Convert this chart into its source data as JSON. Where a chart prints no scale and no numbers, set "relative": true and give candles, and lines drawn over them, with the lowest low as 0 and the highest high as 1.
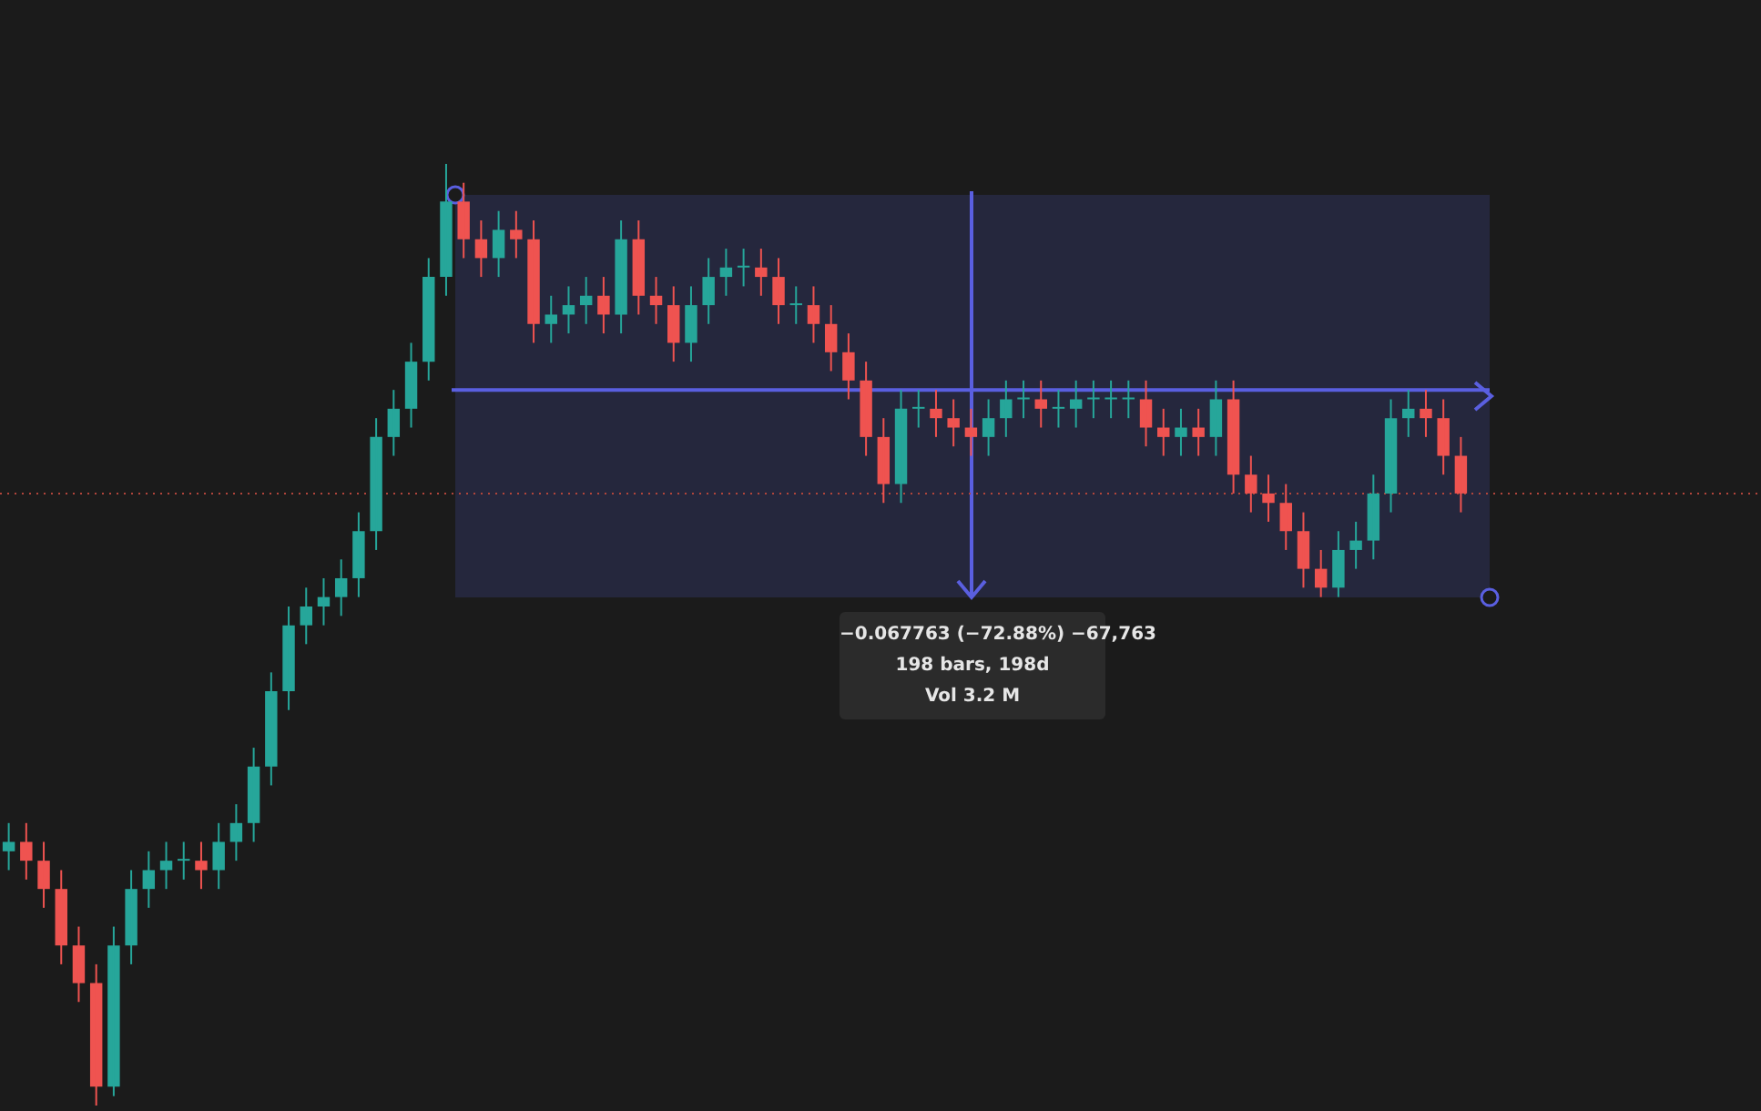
{
  "chart_data": {
    "type": "candlestick",
    "relative": true,
    "categories": [
      null,
      null,
      null,
      null,
      null,
      null,
      null,
      null,
      null,
      null,
      null,
      null,
      null,
      null,
      null,
      null,
      null,
      null,
      null,
      null,
      null,
      null,
      null,
      null,
      null,
      null,
      null,
      null,
      null,
      null,
      null,
      null,
      null,
      null,
      null,
      null,
      null,
      null,
      null,
      null,
      null,
      null,
      null,
      null,
      null,
      null,
      null,
      null,
      null,
      null,
      null,
      null,
      null,
      null,
      null,
      null,
      null,
      null,
      null,
      null,
      null,
      null,
      null,
      null,
      null,
      null,
      null,
      null,
      null,
      null,
      null,
      null,
      null,
      null,
      null,
      null,
      null,
      null,
      null,
      null,
      null,
      null,
      null,
      null
    ],
    "ohlc": [
      [
        0.27,
        0.3,
        0.25,
        0.28
      ],
      [
        0.28,
        0.3,
        0.24,
        0.26
      ],
      [
        0.26,
        0.28,
        0.21,
        0.23
      ],
      [
        0.23,
        0.25,
        0.15,
        0.17
      ],
      [
        0.17,
        0.19,
        0.11,
        0.13
      ],
      [
        0.13,
        0.15,
        0,
        0.02
      ],
      [
        0.02,
        0.19,
        0.01,
        0.17
      ],
      [
        0.17,
        0.25,
        0.15,
        0.23
      ],
      [
        0.23,
        0.27,
        0.21,
        0.25
      ],
      [
        0.25,
        0.28,
        0.23,
        0.26
      ],
      [
        0.26,
        0.28,
        0.24,
        0.26
      ],
      [
        0.26,
        0.28,
        0.23,
        0.25
      ],
      [
        0.25,
        0.3,
        0.23,
        0.28
      ],
      [
        0.28,
        0.32,
        0.26,
        0.3
      ],
      [
        0.3,
        0.38,
        0.28,
        0.36
      ],
      [
        0.36,
        0.46,
        0.34,
        0.44
      ],
      [
        0.44,
        0.53,
        0.42,
        0.51
      ],
      [
        0.51,
        0.55,
        0.49,
        0.53
      ],
      [
        0.53,
        0.56,
        0.51,
        0.54
      ],
      [
        0.54,
        0.58,
        0.52,
        0.56
      ],
      [
        0.56,
        0.63,
        0.54,
        0.61
      ],
      [
        0.61,
        0.73,
        0.59,
        0.71
      ],
      [
        0.71,
        0.76,
        0.69,
        0.74
      ],
      [
        0.74,
        0.81,
        0.72,
        0.79
      ],
      [
        0.79,
        0.9,
        0.77,
        0.88
      ],
      [
        0.88,
        1,
        0.86,
        0.96
      ],
      [
        0.96,
        0.98,
        0.9,
        0.92
      ],
      [
        0.92,
        0.94,
        0.88,
        0.9
      ],
      [
        0.9,
        0.95,
        0.88,
        0.93
      ],
      [
        0.93,
        0.95,
        0.9,
        0.92
      ],
      [
        0.92,
        0.94,
        0.81,
        0.83
      ],
      [
        0.83,
        0.86,
        0.81,
        0.84
      ],
      [
        0.84,
        0.87,
        0.82,
        0.85
      ],
      [
        0.85,
        0.88,
        0.83,
        0.86
      ],
      [
        0.86,
        0.88,
        0.82,
        0.84
      ],
      [
        0.84,
        0.94,
        0.82,
        0.92
      ],
      [
        0.92,
        0.94,
        0.84,
        0.86
      ],
      [
        0.86,
        0.88,
        0.83,
        0.85
      ],
      [
        0.85,
        0.87,
        0.79,
        0.81
      ],
      [
        0.81,
        0.87,
        0.79,
        0.85
      ],
      [
        0.85,
        0.9,
        0.83,
        0.88
      ],
      [
        0.88,
        0.91,
        0.86,
        0.89
      ],
      [
        0.89,
        0.91,
        0.87,
        0.89
      ],
      [
        0.89,
        0.91,
        0.86,
        0.88
      ],
      [
        0.88,
        0.9,
        0.83,
        0.85
      ],
      [
        0.85,
        0.87,
        0.83,
        0.85
      ],
      [
        0.85,
        0.87,
        0.81,
        0.83
      ],
      [
        0.83,
        0.85,
        0.78,
        0.8
      ],
      [
        0.8,
        0.82,
        0.75,
        0.77
      ],
      [
        0.77,
        0.79,
        0.69,
        0.71
      ],
      [
        0.71,
        0.73,
        0.64,
        0.66
      ],
      [
        0.66,
        0.76,
        0.64,
        0.74
      ],
      [
        0.74,
        0.76,
        0.72,
        0.74
      ],
      [
        0.74,
        0.76,
        0.71,
        0.73
      ],
      [
        0.73,
        0.75,
        0.7,
        0.72
      ],
      [
        0.72,
        0.74,
        0.69,
        0.71
      ],
      [
        0.71,
        0.75,
        0.69,
        0.73
      ],
      [
        0.73,
        0.77,
        0.71,
        0.75
      ],
      [
        0.75,
        0.77,
        0.73,
        0.75
      ],
      [
        0.75,
        0.77,
        0.72,
        0.74
      ],
      [
        0.74,
        0.76,
        0.72,
        0.74
      ],
      [
        0.74,
        0.77,
        0.72,
        0.75
      ],
      [
        0.75,
        0.77,
        0.73,
        0.75
      ],
      [
        0.75,
        0.77,
        0.73,
        0.75
      ],
      [
        0.75,
        0.77,
        0.73,
        0.75
      ],
      [
        0.75,
        0.77,
        0.7,
        0.72
      ],
      [
        0.72,
        0.74,
        0.69,
        0.71
      ],
      [
        0.71,
        0.74,
        0.69,
        0.72
      ],
      [
        0.72,
        0.74,
        0.69,
        0.71
      ],
      [
        0.71,
        0.77,
        0.69,
        0.75
      ],
      [
        0.75,
        0.77,
        0.65,
        0.67
      ],
      [
        0.67,
        0.69,
        0.63,
        0.65
      ],
      [
        0.65,
        0.67,
        0.62,
        0.64
      ],
      [
        0.64,
        0.66,
        0.59,
        0.61
      ],
      [
        0.61,
        0.63,
        0.55,
        0.57
      ],
      [
        0.57,
        0.59,
        0.54,
        0.55
      ],
      [
        0.55,
        0.61,
        0.54,
        0.59
      ],
      [
        0.59,
        0.62,
        0.57,
        0.6
      ],
      [
        0.6,
        0.67,
        0.58,
        0.65
      ],
      [
        0.65,
        0.75,
        0.63,
        0.73
      ],
      [
        0.73,
        0.76,
        0.71,
        0.74
      ],
      [
        0.74,
        0.76,
        0.71,
        0.73
      ],
      [
        0.73,
        0.75,
        0.67,
        0.69
      ],
      [
        0.69,
        0.71,
        0.63,
        0.65
      ]
    ],
    "colors": [
      "#26a69a",
      "#ef5350",
      "#ef5350",
      "#ef5350",
      "#ef5350",
      "#ef5350",
      "#26a69a",
      "#26a69a",
      "#26a69a",
      "#26a69a",
      "#26a69a",
      "#ef5350",
      "#26a69a",
      "#26a69a",
      "#26a69a",
      "#26a69a",
      "#26a69a",
      "#26a69a",
      "#26a69a",
      "#26a69a",
      "#26a69a",
      "#26a69a",
      "#26a69a",
      "#26a69a",
      "#26a69a",
      "#26a69a",
      "#ef5350",
      "#ef5350",
      "#26a69a",
      "#ef5350",
      "#ef5350",
      "#26a69a",
      "#26a69a",
      "#26a69a",
      "#ef5350",
      "#26a69a",
      "#ef5350",
      "#ef5350",
      "#ef5350",
      "#26a69a",
      "#26a69a",
      "#26a69a",
      "#26a69a",
      "#ef5350",
      "#ef5350",
      "#26a69a",
      "#ef5350",
      "#ef5350",
      "#ef5350",
      "#ef5350",
      "#ef5350",
      "#26a69a",
      "#26a69a",
      "#ef5350",
      "#ef5350",
      "#ef5350",
      "#26a69a",
      "#26a69a",
      "#26a69a",
      "#ef5350",
      "#26a69a",
      "#26a69a",
      "#26a69a",
      "#26a69a",
      "#26a69a",
      "#ef5350",
      "#ef5350",
      "#26a69a",
      "#ef5350",
      "#26a69a",
      "#ef5350",
      "#ef5350",
      "#ef5350",
      "#ef5350",
      "#ef5350",
      "#ef5350",
      "#26a69a",
      "#26a69a",
      "#26a69a",
      "#26a69a",
      "#26a69a",
      "#ef5350",
      "#ef5350",
      "#ef5350"
    ],
    "ref_lines": [
      {
        "axis": "y",
        "value": 0.65,
        "color": "#b2453b",
        "line_style": "dotted"
      },
      {
        "axis": "y",
        "value": 0.76,
        "color": "#5a5fe0",
        "line_style": "solid"
      }
    ],
    "annotations": [
      "−0.067763 (−72.88%) −67,763",
      "198 bars, 198d",
      "Vol 3.2 M"
    ]
  }
}
